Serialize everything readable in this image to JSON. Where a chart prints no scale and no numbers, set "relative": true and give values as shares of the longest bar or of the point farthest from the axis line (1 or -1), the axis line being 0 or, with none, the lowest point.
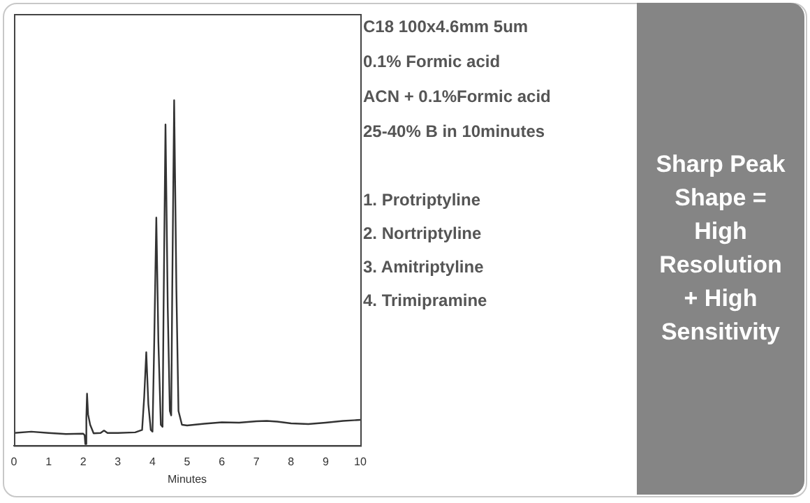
{
  "chart_data": {
    "type": "line",
    "relative": true,
    "xlabel": "Minutes",
    "xlim": [
      0,
      10
    ],
    "xticks": [
      0,
      1,
      2,
      3,
      4,
      5,
      6,
      7,
      8,
      9,
      10
    ],
    "grid": false,
    "legend": false,
    "marker": "none",
    "line_style": "solid",
    "series": [
      {
        "color": "#333333",
        "x": [
          0,
          0.5,
          1,
          1.5,
          2,
          2.04,
          2.06,
          2.09,
          2.11,
          2.14,
          2.2,
          2.3,
          2.5,
          2.6,
          2.7,
          3,
          3.5,
          3.7,
          3.76,
          3.82,
          3.88,
          3.95,
          4.0,
          4.05,
          4.11,
          4.17,
          4.24,
          4.29,
          4.32,
          4.375,
          4.44,
          4.5,
          4.54,
          4.57,
          4.625,
          4.69,
          4.75,
          4.85,
          5,
          5.5,
          6,
          6.5,
          7,
          7.3,
          7.6,
          8,
          8.5,
          9,
          9.5,
          10
        ],
        "values": [
          0.036,
          0.04,
          0.036,
          0.033,
          0.034,
          0.03,
          0.004,
          0.08,
          0.15,
          0.09,
          0.06,
          0.035,
          0.036,
          0.043,
          0.036,
          0.036,
          0.038,
          0.045,
          0.14,
          0.27,
          0.12,
          0.045,
          0.04,
          0.3,
          0.66,
          0.3,
          0.06,
          0.054,
          0.4,
          0.93,
          0.4,
          0.1,
          0.087,
          0.45,
          1,
          0.45,
          0.1,
          0.06,
          0.058,
          0.063,
          0.067,
          0.066,
          0.07,
          0.071,
          0.069,
          0.064,
          0.062,
          0.066,
          0.071,
          0.074
        ]
      }
    ],
    "annotations": [
      "C18 100x4.6mm 5um",
      "0.1% Formic acid",
      "ACN + 0.1%Formic acid",
      "25-40% B in 10minutes",
      "1. Protriptyline",
      "2. Nortriptyline",
      "3. Amitriptyline",
      "4. Trimipramine",
      "Sharp Peak Shape = High Resolution + High Sensitivity"
    ]
  }
}
